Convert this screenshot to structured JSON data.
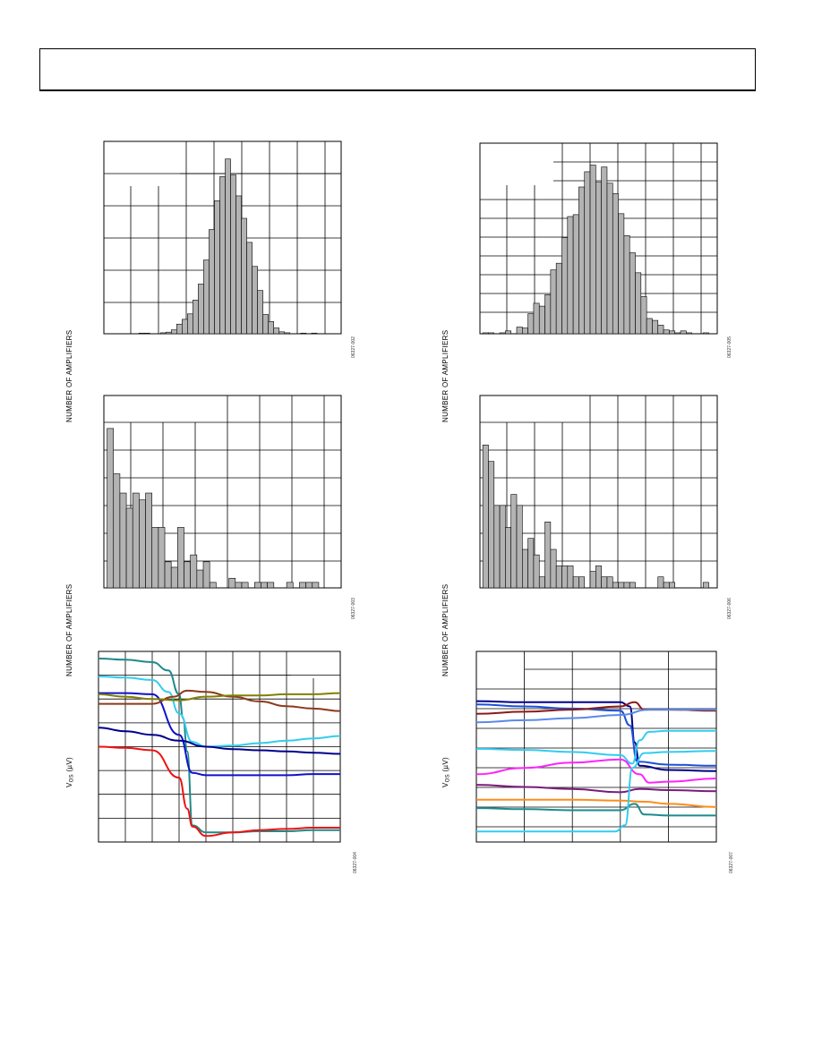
{
  "page": {
    "header": ""
  },
  "charts": [
    {
      "id": "c1",
      "fig_id": "06327-002",
      "ylabel": "NUMBER OF AMPLIFIERS",
      "chart_data": {
        "type": "bar",
        "title": "",
        "xlabel": "",
        "ylabel": "NUMBER OF AMPLIFIERS",
        "ylim": [
          0,
          6
        ],
        "values": [
          0,
          0,
          0,
          0,
          0,
          0,
          0.02,
          0.02,
          0,
          0,
          0.03,
          0.05,
          0.12,
          0.3,
          0.45,
          0.62,
          1.05,
          1.55,
          2.3,
          3.25,
          4.15,
          4.9,
          5.45,
          4.95,
          4.3,
          3.6,
          2.85,
          2.1,
          1.35,
          0.6,
          0.38,
          0.18,
          0.06,
          0.03,
          0,
          0,
          0.02,
          0,
          0.02,
          0,
          0,
          0
        ]
      }
    },
    {
      "id": "c2",
      "fig_id": "06327-005",
      "ylabel": "NUMBER OF AMPLIFIERS",
      "chart_data": {
        "type": "bar",
        "title": "",
        "xlabel": "",
        "ylabel": "NUMBER OF AMPLIFIERS",
        "ylim": [
          0,
          10
        ],
        "values": [
          0.05,
          0.05,
          0,
          0.05,
          0.15,
          0,
          0.35,
          0.3,
          1.05,
          1.6,
          1.45,
          2.05,
          3.35,
          3.7,
          5.05,
          6.15,
          6.25,
          7.7,
          8.5,
          8.85,
          7.95,
          8.75,
          7.9,
          7.35,
          6.3,
          5.15,
          4.25,
          3.2,
          1.95,
          0.8,
          0.7,
          0.45,
          0.2,
          0.15,
          0.05,
          0.15,
          0.05,
          0,
          0,
          0.05
        ]
      }
    },
    {
      "id": "c3",
      "fig_id": "06327-003",
      "ylabel": "NUMBER OF AMPLIFIERS",
      "chart_data": {
        "type": "bar",
        "title": "",
        "xlabel": "",
        "ylabel": "NUMBER OF AMPLIFIERS",
        "ylim": [
          0,
          7
        ],
        "values": [
          5.8,
          4.15,
          3.45,
          2.9,
          3.45,
          3.2,
          3.45,
          2.2,
          2.2,
          0.95,
          0.75,
          2.2,
          0.95,
          1.2,
          0.65,
          0.95,
          0.2,
          0,
          0,
          0.35,
          0.2,
          0.2,
          0,
          0.2,
          0.2,
          0.2,
          0,
          0,
          0.2,
          0,
          0.2,
          0.2,
          0.2,
          0,
          0
        ]
      }
    },
    {
      "id": "c4",
      "fig_id": "06327-006",
      "ylabel": "NUMBER OF AMPLIFIERS",
      "chart_data": {
        "type": "bar",
        "title": "",
        "xlabel": "",
        "ylabel": "NUMBER OF AMPLIFIERS",
        "ylim": [
          0,
          7
        ],
        "values": [
          5.2,
          4.6,
          3.0,
          3.0,
          2.2,
          3.4,
          3.0,
          1.4,
          1.8,
          1.2,
          0.4,
          2.4,
          1.4,
          0.8,
          0.8,
          0.8,
          0.4,
          0.4,
          0,
          0.6,
          0.8,
          0.4,
          0.4,
          0.2,
          0.2,
          0.2,
          0.2,
          0,
          0,
          0,
          0,
          0.4,
          0.2,
          0.2,
          0,
          0,
          0,
          0,
          0,
          0.2
        ]
      }
    },
    {
      "id": "c5",
      "fig_id": "06327-004",
      "ylabel_main": "V",
      "ylabel_sub": "OS",
      "ylabel_unit": " (µV)",
      "chart_data": {
        "type": "line",
        "title": "",
        "xlabel": "",
        "ylabel": "V OS (µV)",
        "xlim": [
          0,
          9
        ],
        "ylim": [
          -6,
          2
        ],
        "series": [
          {
            "color": "#1f8a8a",
            "values": [
              [
                0,
                1.7
              ],
              [
                1,
                1.65
              ],
              [
                2,
                1.55
              ],
              [
                2.6,
                1.2
              ],
              [
                3,
                0.2
              ],
              [
                3.15,
                -0.8
              ],
              [
                3.3,
                -2.2
              ],
              [
                3.5,
                -5.3
              ],
              [
                4,
                -5.6
              ],
              [
                5,
                -5.6
              ],
              [
                6,
                -5.55
              ],
              [
                7,
                -5.55
              ],
              [
                8,
                -5.5
              ],
              [
                9,
                -5.5
              ]
            ]
          },
          {
            "color": "#33ccee",
            "values": [
              [
                0,
                0.95
              ],
              [
                1,
                0.9
              ],
              [
                2,
                0.8
              ],
              [
                2.6,
                0.3
              ],
              [
                3,
                -0.6
              ],
              [
                3.5,
                -1.8
              ],
              [
                4,
                -2.0
              ],
              [
                5,
                -1.95
              ],
              [
                6,
                -1.85
              ],
              [
                7,
                -1.75
              ],
              [
                8,
                -1.65
              ],
              [
                9,
                -1.55
              ]
            ]
          },
          {
            "color": "#1010cc",
            "values": [
              [
                0,
                0.25
              ],
              [
                1,
                0.25
              ],
              [
                2,
                0.2
              ],
              [
                3,
                -1.5
              ],
              [
                3.5,
                -3.1
              ],
              [
                4,
                -3.2
              ],
              [
                5,
                -3.2
              ],
              [
                6,
                -3.2
              ],
              [
                7,
                -3.2
              ],
              [
                8,
                -3.15
              ],
              [
                9,
                -3.15
              ]
            ]
          },
          {
            "color": "#8b3a1a",
            "values": [
              [
                0,
                -0.2
              ],
              [
                1,
                -0.2
              ],
              [
                2,
                -0.2
              ],
              [
                2.8,
                0.1
              ],
              [
                3.3,
                0.35
              ],
              [
                4,
                0.3
              ],
              [
                5,
                0.1
              ],
              [
                6,
                -0.1
              ],
              [
                7,
                -0.3
              ],
              [
                8,
                -0.4
              ],
              [
                9,
                -0.5
              ]
            ]
          },
          {
            "color": "#808000",
            "values": [
              [
                0,
                0.2
              ],
              [
                1,
                0.1
              ],
              [
                2,
                0.0
              ],
              [
                3,
                -0.05
              ],
              [
                4,
                0.1
              ],
              [
                5,
                0.15
              ],
              [
                6,
                0.15
              ],
              [
                7,
                0.2
              ],
              [
                8,
                0.2
              ],
              [
                9,
                0.25
              ]
            ]
          },
          {
            "color": "#00008b",
            "values": [
              [
                0,
                -1.2
              ],
              [
                1,
                -1.35
              ],
              [
                2,
                -1.5
              ],
              [
                3,
                -1.75
              ],
              [
                4,
                -2.0
              ],
              [
                5,
                -2.1
              ],
              [
                6,
                -2.15
              ],
              [
                7,
                -2.2
              ],
              [
                8,
                -2.25
              ],
              [
                9,
                -2.3
              ]
            ]
          },
          {
            "color": "#ee1111",
            "values": [
              [
                0,
                -2.0
              ],
              [
                1,
                -2.05
              ],
              [
                2,
                -2.15
              ],
              [
                3,
                -3.3
              ],
              [
                3.3,
                -4.6
              ],
              [
                3.5,
                -5.35
              ],
              [
                4,
                -5.75
              ],
              [
                5,
                -5.6
              ],
              [
                6,
                -5.5
              ],
              [
                7,
                -5.45
              ],
              [
                8,
                -5.4
              ],
              [
                9,
                -5.4
              ]
            ]
          }
        ]
      }
    },
    {
      "id": "c6",
      "fig_id": "06327-007",
      "ylabel_main": "V",
      "ylabel_sub": "OS",
      "ylabel_unit": " (µV)",
      "chart_data": {
        "type": "line",
        "title": "",
        "xlabel": "",
        "ylabel": "V OS (µV)",
        "xlim": [
          0,
          5
        ],
        "ylim": [
          -8,
          1
        ],
        "series": [
          {
            "color": "#00008b",
            "values": [
              [
                0,
                -1.35
              ],
              [
                1,
                -1.4
              ],
              [
                2,
                -1.4
              ],
              [
                3,
                -1.4
              ],
              [
                3.2,
                -1.6
              ],
              [
                3.3,
                -3.3
              ],
              [
                3.4,
                -4.4
              ],
              [
                4,
                -4.6
              ],
              [
                5,
                -4.65
              ]
            ]
          },
          {
            "color": "#1e4fd8",
            "values": [
              [
                0,
                -1.5
              ],
              [
                1,
                -1.6
              ],
              [
                2,
                -1.7
              ],
              [
                3,
                -1.8
              ],
              [
                3.2,
                -2.5
              ],
              [
                3.35,
                -4.2
              ],
              [
                4,
                -4.35
              ],
              [
                5,
                -4.4
              ]
            ]
          },
          {
            "color": "#8b1a1a",
            "values": [
              [
                0,
                -1.95
              ],
              [
                1,
                -1.85
              ],
              [
                2,
                -1.75
              ],
              [
                3,
                -1.6
              ],
              [
                3.3,
                -1.4
              ],
              [
                3.5,
                -1.75
              ],
              [
                4,
                -1.75
              ],
              [
                5,
                -1.8
              ]
            ]
          },
          {
            "color": "#5a8ae8",
            "values": [
              [
                0,
                -2.35
              ],
              [
                1,
                -2.25
              ],
              [
                2,
                -2.15
              ],
              [
                3,
                -2.0
              ],
              [
                3.6,
                -1.75
              ],
              [
                4,
                -1.75
              ],
              [
                5,
                -1.75
              ]
            ]
          },
          {
            "color": "#33ccee",
            "values": [
              [
                0,
                -3.6
              ],
              [
                1,
                -3.65
              ],
              [
                2,
                -3.75
              ],
              [
                3,
                -3.9
              ],
              [
                3.25,
                -4.3
              ],
              [
                3.4,
                -3.2
              ],
              [
                3.6,
                -2.8
              ],
              [
                4,
                -2.75
              ],
              [
                5,
                -2.75
              ]
            ]
          },
          {
            "color": "#ff22ff",
            "values": [
              [
                0,
                -4.8
              ],
              [
                1,
                -4.5
              ],
              [
                2,
                -4.25
              ],
              [
                3,
                -4.1
              ],
              [
                3.4,
                -4.8
              ],
              [
                3.6,
                -5.2
              ],
              [
                4,
                -5.15
              ],
              [
                5,
                -5.0
              ]
            ]
          },
          {
            "color": "#7a1a7a",
            "values": [
              [
                0,
                -5.3
              ],
              [
                1,
                -5.4
              ],
              [
                2,
                -5.5
              ],
              [
                3,
                -5.65
              ],
              [
                3.4,
                -5.5
              ],
              [
                4,
                -5.55
              ],
              [
                5,
                -5.6
              ]
            ]
          },
          {
            "color": "#ff8c1a",
            "values": [
              [
                0,
                -6.0
              ],
              [
                1,
                -6.0
              ],
              [
                2,
                -6.0
              ],
              [
                3,
                -6.05
              ],
              [
                3.5,
                -6.1
              ],
              [
                4,
                -6.2
              ],
              [
                5,
                -6.35
              ]
            ]
          },
          {
            "color": "#1f8a8a",
            "values": [
              [
                0,
                -6.4
              ],
              [
                1,
                -6.45
              ],
              [
                2,
                -6.5
              ],
              [
                3,
                -6.5
              ],
              [
                3.3,
                -6.2
              ],
              [
                3.5,
                -6.7
              ],
              [
                4,
                -6.75
              ],
              [
                5,
                -6.75
              ]
            ]
          },
          {
            "color": "#33ccee",
            "values": [
              [
                0,
                -7.5
              ],
              [
                1,
                -7.5
              ],
              [
                2,
                -7.5
              ],
              [
                2.9,
                -7.5
              ],
              [
                3.1,
                -7.2
              ],
              [
                3.25,
                -4.5
              ],
              [
                3.5,
                -3.8
              ],
              [
                4,
                -3.75
              ],
              [
                5,
                -3.7
              ]
            ]
          }
        ]
      }
    }
  ]
}
